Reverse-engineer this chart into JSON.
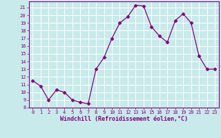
{
  "x": [
    0,
    1,
    2,
    3,
    4,
    5,
    6,
    7,
    8,
    9,
    10,
    11,
    12,
    13,
    14,
    15,
    16,
    17,
    18,
    19,
    20,
    21,
    22,
    23
  ],
  "y": [
    11.5,
    10.8,
    9.0,
    10.3,
    10.0,
    9.0,
    8.7,
    8.5,
    13.0,
    14.5,
    17.0,
    19.0,
    19.8,
    21.3,
    21.2,
    18.5,
    17.3,
    16.5,
    19.3,
    20.2,
    19.0,
    14.7,
    13.0,
    13.0
  ],
  "line_color": "#800080",
  "marker": "D",
  "marker_size": 2.5,
  "xlabel": "Windchill (Refroidissement éolien,°C)",
  "xlim": [
    -0.5,
    23.5
  ],
  "ylim": [
    8,
    21.8
  ],
  "yticks": [
    8,
    9,
    10,
    11,
    12,
    13,
    14,
    15,
    16,
    17,
    18,
    19,
    20,
    21
  ],
  "xticks": [
    0,
    1,
    2,
    3,
    4,
    5,
    6,
    7,
    8,
    9,
    10,
    11,
    12,
    13,
    14,
    15,
    16,
    17,
    18,
    19,
    20,
    21,
    22,
    23
  ],
  "bg_color": "#c8eaea",
  "grid_color": "#ffffff",
  "tick_color": "#800080",
  "label_color": "#800080",
  "spine_color": "#800080"
}
